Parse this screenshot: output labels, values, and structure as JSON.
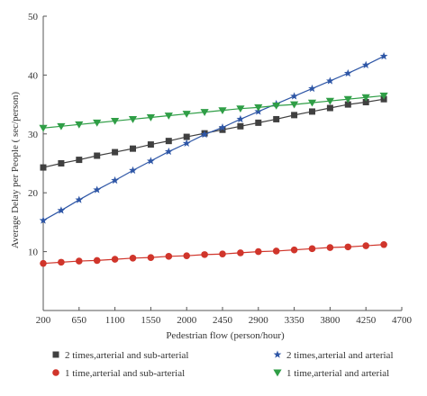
{
  "chart_data": {
    "type": "line",
    "xlabel": "Pedestrian flow (person/hour)",
    "ylabel": "Average Delay per People ( sec/person)",
    "xlim": [
      200,
      4700
    ],
    "ylim": [
      0,
      50
    ],
    "x_ticks": [
      200,
      650,
      1100,
      1550,
      2000,
      2450,
      2900,
      3350,
      3800,
      4250,
      4700
    ],
    "y_ticks": [
      10,
      20,
      30,
      40,
      50
    ],
    "x": [
      200,
      425,
      650,
      875,
      1100,
      1325,
      1550,
      1775,
      2000,
      2225,
      2450,
      2675,
      2900,
      3125,
      3350,
      3575,
      3800,
      4025,
      4250,
      4475
    ],
    "legend_placement": "bottom",
    "series": [
      {
        "name": "2 times,arterial and sub-arterial",
        "marker": "square",
        "color": "#404040",
        "values": [
          24.3,
          25.0,
          25.6,
          26.3,
          26.9,
          27.5,
          28.2,
          28.8,
          29.5,
          30.1,
          30.7,
          31.3,
          31.9,
          32.5,
          33.2,
          33.8,
          34.4,
          35.0,
          35.4,
          35.9
        ]
      },
      {
        "name": "2 times,arterial and arterial",
        "marker": "star",
        "color": "#2e56a6",
        "values": [
          15.3,
          17.0,
          18.8,
          20.5,
          22.1,
          23.8,
          25.4,
          27.0,
          28.4,
          29.9,
          31.1,
          32.5,
          33.8,
          35.1,
          36.4,
          37.7,
          39.0,
          40.3,
          41.7,
          43.2
        ]
      },
      {
        "name": "1 time,arterial and sub-arterial",
        "marker": "circle",
        "color": "#d0352b",
        "values": [
          8.0,
          8.2,
          8.4,
          8.5,
          8.7,
          8.9,
          9.0,
          9.2,
          9.3,
          9.5,
          9.6,
          9.8,
          10.0,
          10.1,
          10.3,
          10.5,
          10.7,
          10.8,
          11.0,
          11.2
        ]
      },
      {
        "name": "1 time,arterial and arterial",
        "marker": "triangle-down",
        "color": "#2f9e46",
        "values": [
          31.0,
          31.3,
          31.6,
          31.9,
          32.2,
          32.5,
          32.8,
          33.1,
          33.4,
          33.7,
          34.0,
          34.3,
          34.5,
          34.8,
          35.0,
          35.3,
          35.6,
          35.9,
          36.2,
          36.5
        ]
      }
    ]
  }
}
